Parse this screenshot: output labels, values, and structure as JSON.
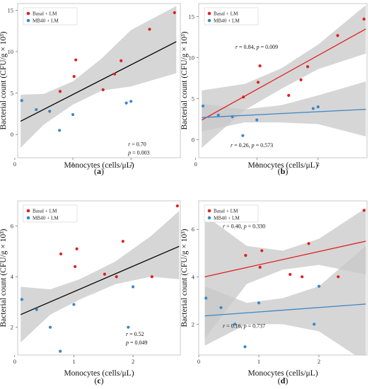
{
  "colors": {
    "basal": "#e02020",
    "mb40": "#3b86c6",
    "fit_single": "#000000",
    "fit_basal": "#e02020",
    "fit_mb40": "#3b86c6",
    "band": "#c8c8c8"
  },
  "chart_data": [
    {
      "panel_label": "(a)",
      "type": "scatter",
      "xlabel": "Monocytes (cells/μL)",
      "ylabel": "Bacterial count (CFU/g × 10³)",
      "xlim": [
        0.05,
        2.85
      ],
      "ylim": [
        -2.8,
        15.8
      ],
      "xticks": [
        0,
        1,
        2
      ],
      "yticks": [
        0,
        5,
        10,
        15
      ],
      "legend": {
        "placement": "top-left",
        "entries": [
          "Basal + LM",
          "MB40 + LM"
        ]
      },
      "series": [
        {
          "name": "Basal + LM",
          "color_key": "basal",
          "x": [
            0.78,
            1.02,
            1.05,
            1.52,
            1.72,
            1.83,
            2.32,
            2.75
          ],
          "y": [
            5.2,
            7.0,
            9.0,
            5.4,
            7.3,
            8.9,
            12.7,
            14.7
          ]
        },
        {
          "name": "MB40 + LM",
          "color_key": "mb40",
          "x": [
            0.12,
            0.37,
            0.6,
            0.77,
            1.0,
            1.92,
            2.0
          ],
          "y": [
            4.1,
            3.0,
            2.8,
            0.5,
            2.4,
            3.8,
            4.0
          ]
        }
      ],
      "fits": [
        {
          "color_key": "fit_single",
          "x0": 0.1,
          "y0": 1.6,
          "x1": 2.78,
          "y1": 11.2,
          "band_upper": [
            [
              0.1,
              4.8
            ],
            [
              0.5,
              4.9
            ],
            [
              1.0,
              6.4
            ],
            [
              1.5,
              9.2
            ],
            [
              2.0,
              12.6
            ],
            [
              2.78,
              15.5
            ]
          ],
          "band_lower": [
            [
              0.1,
              -1.6
            ],
            [
              0.5,
              1.2
            ],
            [
              1.0,
              3.6
            ],
            [
              1.5,
              5.3
            ],
            [
              2.0,
              5.8
            ],
            [
              2.78,
              7.4
            ]
          ]
        }
      ],
      "annotations": [
        {
          "text": "r = 0.70",
          "data_x": 1.95,
          "data_y": -1.4
        },
        {
          "text": "p = 0.003",
          "data_x": 1.95,
          "data_y": -2.4
        }
      ]
    },
    {
      "panel_label": "(b)",
      "type": "scatter",
      "xlabel": "Monocytes (cells/μL)",
      "ylabel": "Bacterial count (CFU/g × 10³)",
      "xlim": [
        0.05,
        2.8
      ],
      "ylim": [
        -2.2,
        16.6
      ],
      "xticks": [
        0,
        1,
        2
      ],
      "yticks": [
        0,
        5,
        10,
        15
      ],
      "legend": {
        "placement": "top-left",
        "entries": [
          "Basal + LM",
          "MB40 + LM"
        ]
      },
      "series": [
        {
          "name": "Basal + LM",
          "color_key": "basal",
          "x": [
            0.78,
            1.02,
            1.05,
            1.52,
            1.72,
            1.83,
            2.32,
            2.75
          ],
          "y": [
            5.2,
            7.0,
            9.0,
            5.4,
            7.3,
            8.9,
            12.7,
            14.7
          ]
        },
        {
          "name": "MB40 + LM",
          "color_key": "mb40",
          "x": [
            0.12,
            0.37,
            0.6,
            0.77,
            1.0,
            1.92,
            2.0
          ],
          "y": [
            4.1,
            3.0,
            2.8,
            0.5,
            2.4,
            3.8,
            4.0
          ]
        }
      ],
      "fits": [
        {
          "color_key": "fit_basal",
          "x0": 0.1,
          "y0": 2.4,
          "x1": 2.78,
          "y1": 13.5,
          "band_upper": [
            [
              0.1,
              6.0
            ],
            [
              0.8,
              6.8
            ],
            [
              1.4,
              8.7
            ],
            [
              2.0,
              11.6
            ],
            [
              2.78,
              16.4
            ]
          ],
          "band_lower": [
            [
              0.1,
              -1.0
            ],
            [
              0.8,
              3.6
            ],
            [
              1.4,
              6.2
            ],
            [
              2.0,
              8.6
            ],
            [
              2.78,
              10.5
            ]
          ]
        },
        {
          "color_key": "fit_mb40",
          "x0": 0.1,
          "y0": 2.7,
          "x1": 2.78,
          "y1": 3.7,
          "band_upper": [
            [
              0.1,
              4.4
            ],
            [
              0.8,
              3.7
            ],
            [
              1.4,
              4.2
            ],
            [
              2.0,
              5.4
            ],
            [
              2.78,
              7.1
            ]
          ],
          "band_lower": [
            [
              0.1,
              1.0
            ],
            [
              0.8,
              2.1
            ],
            [
              1.4,
              2.1
            ],
            [
              2.0,
              1.9
            ],
            [
              2.78,
              0.4
            ]
          ]
        }
      ],
      "annotations": [
        {
          "text": "r = 0.84, p = 0.009",
          "data_x": 0.65,
          "data_y": 11.1
        },
        {
          "text": "r = 0.26, p = 0.573",
          "data_x": 0.57,
          "data_y": -0.9
        }
      ]
    },
    {
      "panel_label": "(c)",
      "type": "scatter",
      "xlabel": "Monocytes (cells/μL)",
      "ylabel": "Bacterial count (CFU/g × 10³)",
      "xlim": [
        0.05,
        2.8
      ],
      "ylim": [
        0.9,
        7.0
      ],
      "xticks": [
        0,
        1,
        2
      ],
      "yticks": [
        2,
        4,
        6
      ],
      "legend": {
        "placement": "top-left",
        "entries": [
          "Basal + LM",
          "MB40 + LM"
        ]
      },
      "series": [
        {
          "name": "Basal + LM",
          "color_key": "basal",
          "x": [
            0.78,
            1.02,
            1.05,
            1.52,
            1.72,
            1.83,
            2.32,
            2.75
          ],
          "y": [
            4.9,
            4.4,
            5.1,
            4.1,
            4.0,
            5.4,
            4.0,
            6.8
          ]
        },
        {
          "name": "MB40 + LM",
          "color_key": "mb40",
          "x": [
            0.12,
            0.37,
            0.6,
            0.77,
            1.0,
            1.92,
            2.0
          ],
          "y": [
            3.1,
            2.7,
            2.0,
            1.05,
            2.9,
            2.0,
            3.6
          ]
        }
      ],
      "fits": [
        {
          "color_key": "fit_single",
          "x0": 0.1,
          "y0": 2.5,
          "x1": 2.78,
          "y1": 5.2,
          "band_upper": [
            [
              0.1,
              3.6
            ],
            [
              0.6,
              3.5
            ],
            [
              1.1,
              3.9
            ],
            [
              1.7,
              4.6
            ],
            [
              2.3,
              5.6
            ],
            [
              2.78,
              6.6
            ]
          ],
          "band_lower": [
            [
              0.1,
              1.4
            ],
            [
              0.6,
              2.5
            ],
            [
              1.1,
              3.1
            ],
            [
              1.7,
              3.7
            ],
            [
              2.3,
              4.0
            ],
            [
              2.78,
              3.9
            ]
          ]
        }
      ],
      "annotations": [
        {
          "text": "r = 0.52",
          "data_x": 1.88,
          "data_y": 1.65
        },
        {
          "text": "p = 0.049",
          "data_x": 1.88,
          "data_y": 1.32
        }
      ]
    },
    {
      "panel_label": "(d)",
      "type": "scatter",
      "xlabel": "Monocytes (cells/μL)",
      "ylabel": "Bacterial count (CFU/g × 10³)",
      "xlim": [
        0.0,
        2.8
      ],
      "ylim": [
        0.7,
        7.2
      ],
      "xticks": [
        0,
        1,
        2
      ],
      "yticks": [
        2,
        4,
        6
      ],
      "legend": {
        "placement": "top-left",
        "entries": [
          "Basal + LM",
          "MB40 + LM"
        ]
      },
      "series": [
        {
          "name": "Basal + LM",
          "color_key": "basal",
          "x": [
            0.78,
            1.02,
            1.05,
            1.52,
            1.72,
            1.83,
            2.32,
            2.75
          ],
          "y": [
            4.9,
            4.4,
            5.1,
            4.1,
            4.0,
            5.4,
            4.0,
            6.8
          ]
        },
        {
          "name": "MB40 + LM",
          "color_key": "mb40",
          "x": [
            0.12,
            0.37,
            0.6,
            0.77,
            1.0,
            1.92,
            2.0
          ],
          "y": [
            3.1,
            2.7,
            2.0,
            1.05,
            2.9,
            2.0,
            3.6
          ]
        }
      ],
      "fits": [
        {
          "color_key": "fit_basal",
          "x0": 0.1,
          "y0": 4.0,
          "x1": 2.78,
          "y1": 5.5,
          "band_upper": [
            [
              0.1,
              6.6
            ],
            [
              0.8,
              5.3
            ],
            [
              1.4,
              5.1
            ],
            [
              2.0,
              5.6
            ],
            [
              2.78,
              6.9
            ]
          ],
          "band_lower": [
            [
              0.1,
              1.4
            ],
            [
              0.8,
              3.7
            ],
            [
              1.4,
              4.3
            ],
            [
              2.0,
              4.5
            ],
            [
              2.78,
              4.1
            ]
          ]
        },
        {
          "color_key": "fit_mb40",
          "x0": 0.1,
          "y0": 2.35,
          "x1": 2.78,
          "y1": 2.85,
          "band_upper": [
            [
              0.1,
              3.6
            ],
            [
              0.8,
              2.9
            ],
            [
              1.4,
              3.1
            ],
            [
              2.0,
              3.6
            ],
            [
              2.78,
              5.3
            ]
          ],
          "band_lower": [
            [
              0.1,
              1.1
            ],
            [
              0.8,
              2.0
            ],
            [
              1.4,
              2.0
            ],
            [
              2.0,
              1.7
            ],
            [
              2.78,
              0.4
            ]
          ]
        }
      ],
      "annotations": [
        {
          "text": "r = 0.40, p = 0.330",
          "data_x": 0.4,
          "data_y": 6.05
        },
        {
          "text": "r = 0.16, p = 0.737",
          "data_x": 0.4,
          "data_y": 1.85
        }
      ]
    }
  ]
}
